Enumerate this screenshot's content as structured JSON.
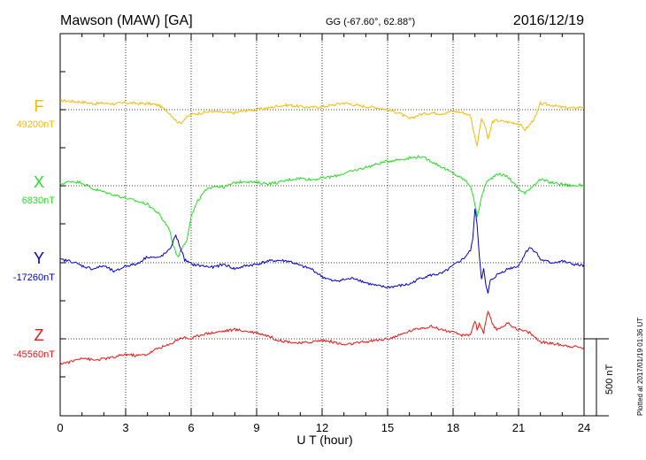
{
  "header": {
    "station": "Mawson (MAW)  [GA]",
    "coords": "GG (-67.60°,  62.88°)",
    "date": "2016/12/19"
  },
  "footer": {
    "plotted": "Plotted at 2017/01/19 01:36 UT"
  },
  "chart_data": {
    "type": "line",
    "xlabel": "U T (hour)",
    "xlim": [
      0,
      24
    ],
    "xticks": [
      0,
      3,
      6,
      9,
      12,
      15,
      18,
      21,
      24
    ],
    "grid": true,
    "scale_bar": {
      "label": "500 nT",
      "value_nT": 500
    },
    "series": [
      {
        "name": "F",
        "baseline_label": "49200nT",
        "baseline_nT": 49200,
        "color": "#f5b800",
        "x": [
          0,
          0.5,
          1,
          1.5,
          2,
          2.5,
          3,
          3.5,
          4,
          4.5,
          5,
          5.3,
          5.5,
          5.7,
          6,
          6.5,
          7,
          7.5,
          8,
          8.5,
          9,
          9.5,
          10,
          10.5,
          11,
          11.5,
          12,
          12.5,
          13,
          13.5,
          14,
          14.5,
          15,
          15.5,
          16,
          16.5,
          17,
          17.5,
          18,
          18.5,
          18.8,
          19,
          19.1,
          19.3,
          19.5,
          19.6,
          19.8,
          20,
          20.5,
          21,
          21.3,
          21.5,
          21.8,
          22,
          22.5,
          23,
          23.5,
          24
        ],
        "y": [
          60,
          55,
          50,
          40,
          42,
          38,
          45,
          40,
          40,
          30,
          -20,
          -70,
          -90,
          -60,
          -30,
          -20,
          -10,
          -20,
          -20,
          -5,
          0,
          10,
          25,
          30,
          20,
          15,
          20,
          30,
          45,
          30,
          20,
          15,
          0,
          -20,
          -60,
          -30,
          -20,
          -25,
          -10,
          -20,
          -40,
          -180,
          -230,
          -60,
          -120,
          -200,
          -80,
          -70,
          -80,
          -90,
          -130,
          -100,
          -40,
          40,
          30,
          15,
          10,
          20
        ]
      },
      {
        "name": "X",
        "baseline_label": "6830nT",
        "baseline_nT": 6830,
        "color": "#22dd22",
        "x": [
          0,
          0.5,
          1,
          1.5,
          2,
          2.5,
          3,
          3.5,
          4,
          4.5,
          5,
          5.2,
          5.4,
          5.6,
          5.8,
          6,
          6.3,
          6.6,
          7,
          7.5,
          8,
          8.5,
          9,
          9.5,
          10,
          10.5,
          11,
          11.5,
          12,
          12.5,
          13,
          13.5,
          14,
          14.5,
          15,
          15.5,
          16,
          16.5,
          17,
          17.5,
          18,
          18.5,
          18.8,
          19,
          19.1,
          19.3,
          19.5,
          19.7,
          20,
          20.5,
          21,
          21.3,
          21.5,
          21.8,
          22,
          22.5,
          23,
          23.5,
          24
        ],
        "y": [
          10,
          30,
          20,
          -20,
          -40,
          -60,
          -80,
          -100,
          -120,
          -180,
          -280,
          -400,
          -460,
          -400,
          -350,
          -200,
          -100,
          -40,
          0,
          -10,
          20,
          30,
          20,
          15,
          20,
          40,
          50,
          40,
          50,
          60,
          80,
          100,
          120,
          140,
          160,
          170,
          180,
          190,
          160,
          120,
          80,
          40,
          0,
          -120,
          -200,
          -80,
          20,
          40,
          80,
          60,
          -20,
          -50,
          -20,
          20,
          40,
          20,
          10,
          0,
          5
        ]
      },
      {
        "name": "Y",
        "baseline_label": "-17260nT",
        "baseline_nT": -17260,
        "color": "#0000cc",
        "x": [
          0,
          0.5,
          1,
          1.5,
          2,
          2.5,
          3,
          3.5,
          4,
          4.5,
          5,
          5.3,
          5.5,
          5.7,
          6,
          6.5,
          7,
          7.5,
          8,
          8.5,
          9,
          9.5,
          10,
          10.5,
          11,
          11.5,
          12,
          12.5,
          13,
          13.5,
          14,
          14.5,
          15,
          15.5,
          16,
          16.5,
          17,
          17.5,
          18,
          18.5,
          18.8,
          18.9,
          19,
          19.1,
          19.2,
          19.3,
          19.4,
          19.5,
          19.6,
          19.7,
          20,
          20.5,
          21,
          21.3,
          21.5,
          21.8,
          22,
          22.5,
          23,
          23.5,
          24
        ],
        "y": [
          20,
          10,
          -20,
          -40,
          -20,
          -60,
          -20,
          -10,
          40,
          30,
          80,
          180,
          100,
          20,
          -10,
          -20,
          -30,
          -10,
          -40,
          -20,
          -10,
          10,
          15,
          10,
          -20,
          -40,
          -90,
          -120,
          -110,
          -100,
          -130,
          -150,
          -160,
          -150,
          -140,
          -100,
          -80,
          -70,
          -20,
          30,
          80,
          150,
          350,
          250,
          50,
          -100,
          -40,
          -150,
          -200,
          -120,
          -80,
          -40,
          -20,
          60,
          100,
          70,
          20,
          0,
          10,
          -10,
          -20
        ]
      },
      {
        "name": "Z",
        "baseline_label": "-45560nT",
        "baseline_nT": -45560,
        "color": "#ee1111",
        "x": [
          0,
          0.5,
          1,
          1.5,
          2,
          2.5,
          3,
          3.5,
          4,
          4.5,
          5,
          5.3,
          5.6,
          6,
          6.5,
          7,
          7.5,
          8,
          8.5,
          9,
          9.5,
          10,
          10.5,
          11,
          11.5,
          12,
          12.5,
          13,
          13.5,
          14,
          14.5,
          15,
          15.5,
          16,
          16.5,
          17,
          17.5,
          18,
          18.5,
          18.8,
          19,
          19.1,
          19.2,
          19.4,
          19.6,
          19.8,
          20,
          20.5,
          21,
          21.5,
          22,
          22.5,
          23,
          23.5,
          24
        ],
        "y": [
          -160,
          -150,
          -120,
          -140,
          -130,
          -120,
          -100,
          -110,
          -100,
          -60,
          -40,
          -10,
          10,
          0,
          30,
          40,
          50,
          60,
          50,
          40,
          20,
          -10,
          -20,
          -30,
          -20,
          -10,
          -20,
          -40,
          -30,
          -20,
          -10,
          0,
          20,
          50,
          70,
          80,
          60,
          40,
          20,
          30,
          120,
          60,
          100,
          40,
          180,
          90,
          60,
          100,
          60,
          40,
          -20,
          -30,
          -40,
          -50,
          -60
        ]
      }
    ]
  }
}
